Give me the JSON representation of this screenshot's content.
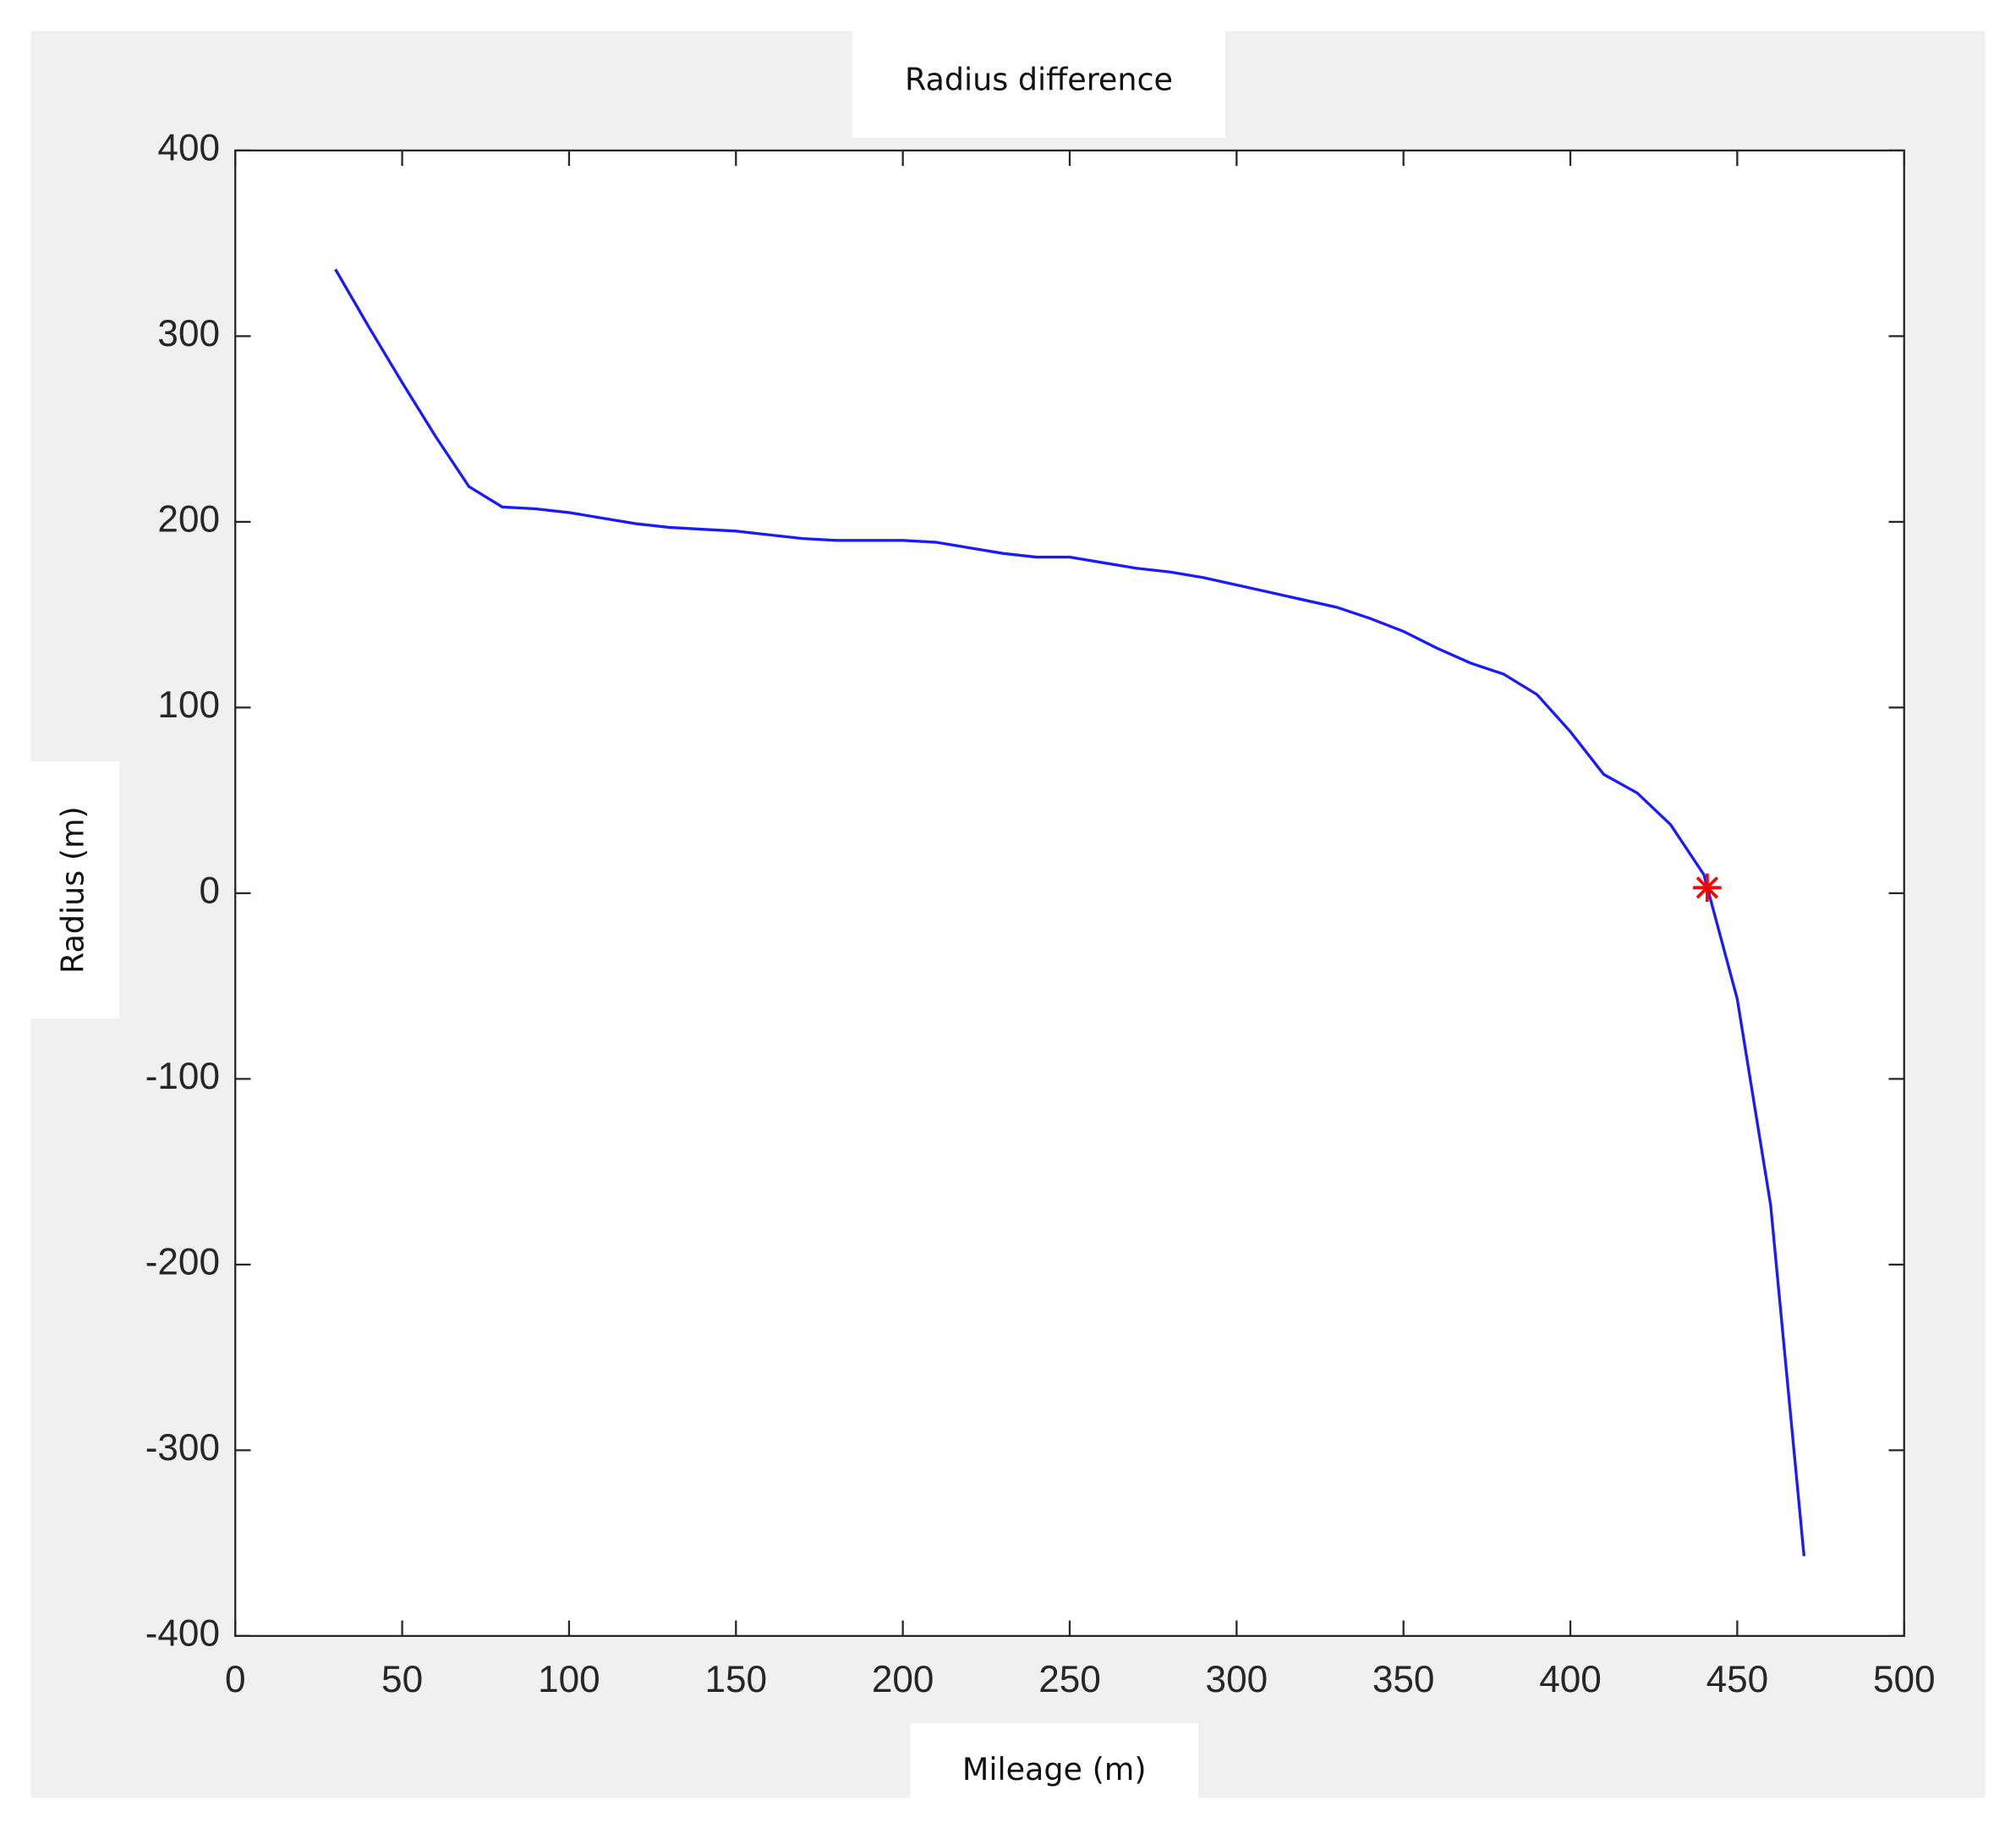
{
  "chart_data": {
    "type": "line",
    "title": "Radius difference",
    "xlabel": "Mileage (m)",
    "ylabel": "Radius (m)",
    "x": [
      30,
      40,
      50,
      60,
      70,
      80,
      90,
      100,
      110,
      120,
      130,
      140,
      150,
      160,
      170,
      180,
      190,
      200,
      210,
      220,
      230,
      240,
      250,
      260,
      270,
      280,
      290,
      300,
      310,
      320,
      330,
      340,
      350,
      360,
      370,
      380,
      390,
      400,
      410,
      420,
      430,
      440,
      450,
      460,
      470
    ],
    "series": [
      {
        "color": "#1a1aff",
        "values": [
          336,
          305,
          275,
          246,
          219,
          208,
          207,
          205,
          202,
          199,
          197,
          196,
          195,
          193,
          191,
          190,
          190,
          190,
          189,
          186,
          183,
          181,
          181,
          178,
          175,
          173,
          170,
          166,
          162,
          158,
          154,
          148,
          141,
          132,
          124,
          118,
          107,
          87,
          64,
          54,
          37,
          10,
          -57,
          -168,
          -357
        ]
      },
      {
        "color": "#ff0000",
        "marker": "*",
        "x": [
          441
        ],
        "values": [
          3
        ]
      }
    ],
    "xlim": [
      0,
      500
    ],
    "xticks": [
      0,
      50,
      100,
      150,
      200,
      250,
      300,
      350,
      400,
      450,
      500
    ],
    "ylim": [
      -400,
      400
    ],
    "yticks": [
      -400,
      -300,
      -200,
      -100,
      0,
      100,
      200,
      300,
      400
    ],
    "grid": false
  }
}
